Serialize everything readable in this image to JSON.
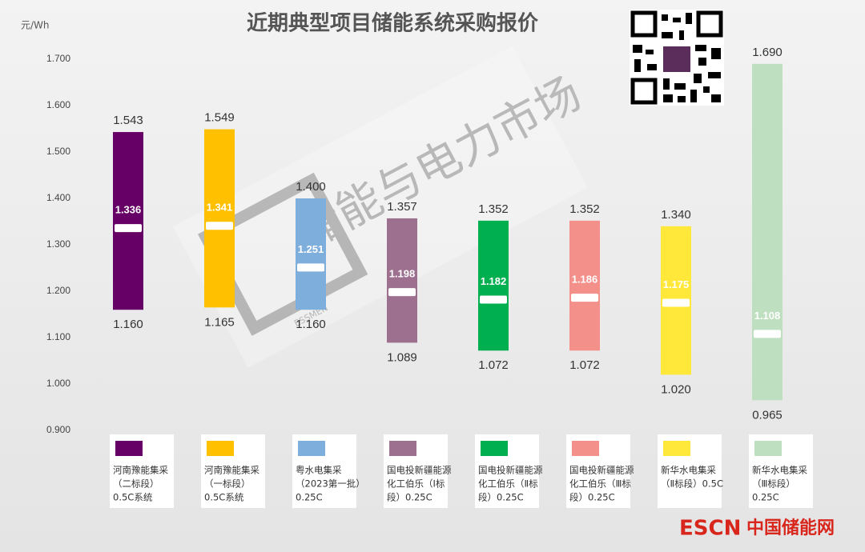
{
  "chart_data": {
    "type": "floating-bar",
    "title": "近期典型项目储能系统采购报价",
    "y_unit": "元/Wh",
    "categories": [
      [
        "河南豫能集采",
        "（二标段）",
        "0.5C系统"
      ],
      [
        "河南豫能集采",
        "（一标段）",
        "0.5C系统"
      ],
      [
        "粤水电集采",
        "（2023第一批）",
        "0.25C"
      ],
      [
        "国电投新疆能源",
        "化工伯乐（Ⅰ标",
        "段）0.25C"
      ],
      [
        "国电投新疆能源",
        "化工伯乐（Ⅱ标",
        "段）0.25C"
      ],
      [
        "国电投新疆能源",
        "化工伯乐（Ⅲ标",
        "段）0.25C"
      ],
      [
        "新华水电集采",
        "（Ⅱ标段）0.5C"
      ],
      [
        "新华水电集采",
        "（Ⅲ标段）",
        "0.25C"
      ]
    ],
    "colors": [
      "#660066",
      "#ffc000",
      "#7eaedb",
      "#9e7090",
      "#00b050",
      "#f4908a",
      "#ffe83a",
      "#bfe0c0"
    ],
    "high": [
      1.543,
      1.549,
      1.4,
      1.357,
      1.352,
      1.352,
      1.34,
      1.69
    ],
    "high_labels": [
      "1.543",
      "1.549",
      "1.400",
      "1.357",
      "1.352",
      "1.352",
      "1.340",
      "1.690"
    ],
    "low": [
      1.16,
      1.165,
      1.16,
      1.089,
      1.072,
      1.072,
      1.02,
      0.965
    ],
    "low_labels": [
      "1.160",
      "1.165",
      "1.160",
      "1.089",
      "1.072",
      "1.072",
      "1.020",
      "0.965"
    ],
    "mean": [
      1.336,
      1.341,
      1.251,
      1.198,
      1.182,
      1.186,
      1.175,
      1.108
    ],
    "mean_labels": [
      "1.336",
      "1.341",
      "1.251",
      "1.198",
      "1.182",
      "1.186",
      "1.175",
      "1.108"
    ],
    "ylim": [
      0.9,
      1.7
    ],
    "yticks": [
      {
        "value": 0.9,
        "label": "0.900"
      },
      {
        "value": 1.0,
        "label": "1.000"
      },
      {
        "value": 1.1,
        "label": "1.100"
      },
      {
        "value": 1.2,
        "label": "1.200"
      },
      {
        "value": 1.3,
        "label": "1.300"
      },
      {
        "value": 1.4,
        "label": "1.400"
      },
      {
        "value": 1.5,
        "label": "1.500"
      },
      {
        "value": 1.6,
        "label": "1.600"
      },
      {
        "value": 1.7,
        "label": "1.700"
      }
    ],
    "grid": false
  },
  "watermark": {
    "text": "储能与电力市场",
    "brand": "ESSMEN"
  },
  "footer": {
    "brand": "ESCN",
    "site": "中国储能网"
  }
}
